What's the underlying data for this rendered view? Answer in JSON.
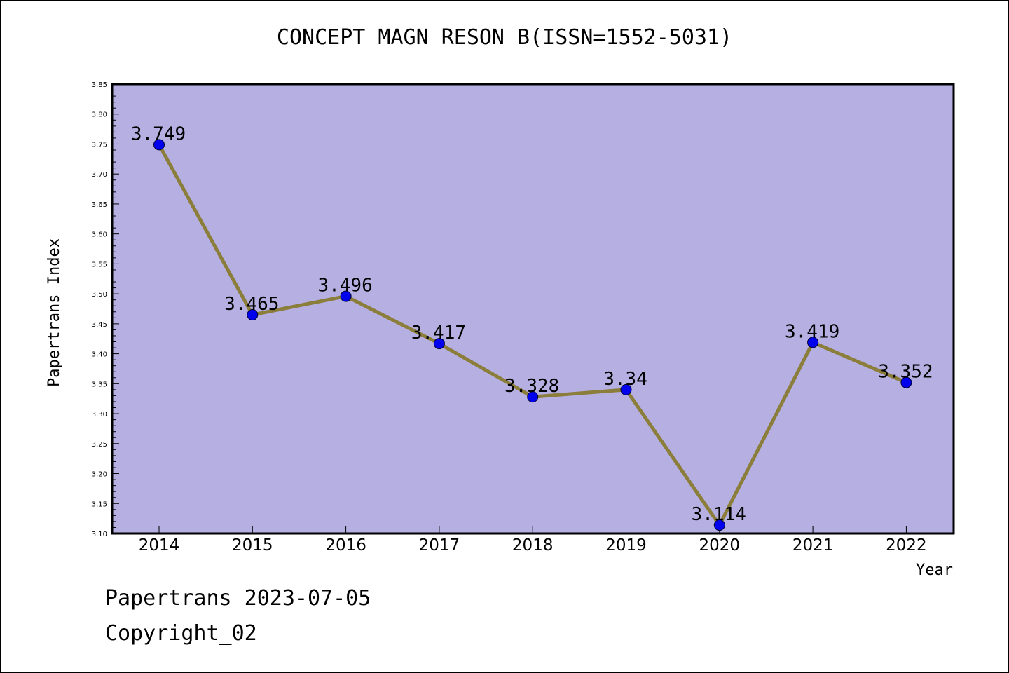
{
  "chart_data": {
    "type": "line",
    "title": "CONCEPT MAGN RESON B(ISSN=1552-5031)",
    "xlabel": "Year",
    "ylabel": "Papertrans Index",
    "categories": [
      "2014",
      "2015",
      "2016",
      "2017",
      "2018",
      "2019",
      "2020",
      "2021",
      "2022"
    ],
    "series": [
      {
        "values": [
          3.749,
          3.465,
          3.496,
          3.417,
          3.328,
          3.34,
          3.114,
          3.419,
          3.352
        ],
        "labels": [
          "3.749",
          "3.465",
          "3.496",
          "3.417",
          "3.328",
          "3.34",
          "3.114",
          "3.419",
          "3.352"
        ],
        "line_color": "#8b7d3a",
        "marker_color": "#0000ee"
      }
    ],
    "ylim": [
      3.1,
      3.85
    ],
    "yticks": [
      "3.10",
      "3.15",
      "3.20",
      "3.25",
      "3.30",
      "3.35",
      "3.40",
      "3.45",
      "3.50",
      "3.55",
      "3.60",
      "3.65",
      "3.70",
      "3.75",
      "3.80",
      "3.85"
    ],
    "plot_background": "#b5afe2",
    "grid": false,
    "legend": "none"
  },
  "footer": {
    "line1": "Papertrans 2023-07-05",
    "line2": "Copyright_02"
  }
}
